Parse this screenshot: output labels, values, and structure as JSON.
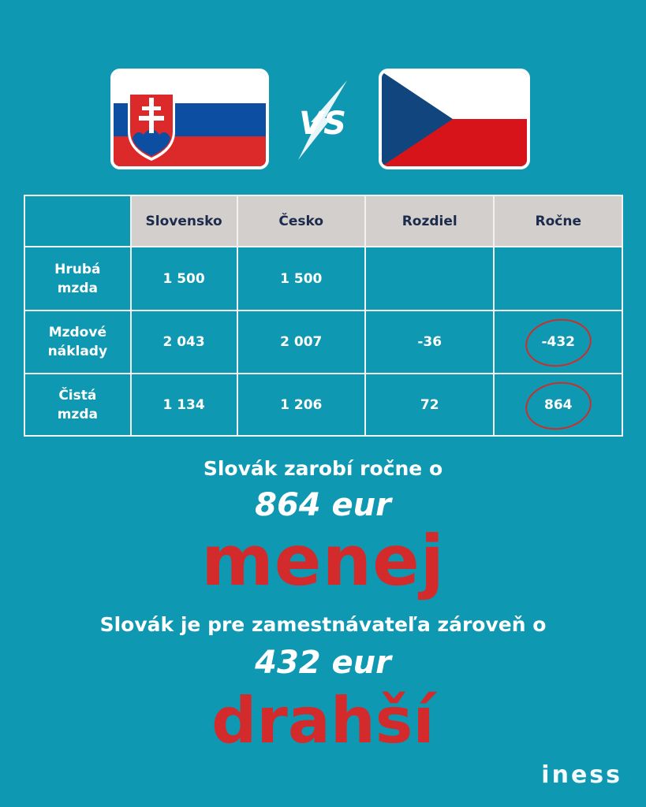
{
  "header": {
    "vs_label": "VS",
    "left_flag": "slovakia-flag",
    "right_flag": "czechia-flag"
  },
  "table": {
    "columns": [
      "",
      "Slovensko",
      "Česko",
      "Rozdiel",
      "Ročne"
    ],
    "rows": [
      {
        "label": [
          "Hrubá",
          "mzda"
        ],
        "values": [
          "1 500",
          "1 500",
          "",
          ""
        ]
      },
      {
        "label": [
          "Mzdové",
          "náklady"
        ],
        "values": [
          "2 043",
          "2 007",
          "-36",
          "-432"
        ]
      },
      {
        "label": [
          "Čistá",
          "mzda"
        ],
        "values": [
          "1 134",
          "1 206",
          "72",
          "864"
        ]
      }
    ],
    "circled": [
      "-432",
      "864"
    ]
  },
  "text": {
    "line1": "Slovák zarobí ročne o",
    "line2": "864 eur",
    "line3": "menej",
    "line4": "Slovák je pre zamestnávateľa zároveň o",
    "line5": "432 eur",
    "line6": "drahší"
  },
  "logo": "iness",
  "colors": {
    "background": "#0f98b1",
    "header_cell": "#d3cfcd",
    "header_text": "#1c2b4c",
    "accent_red": "#d32a2c"
  }
}
